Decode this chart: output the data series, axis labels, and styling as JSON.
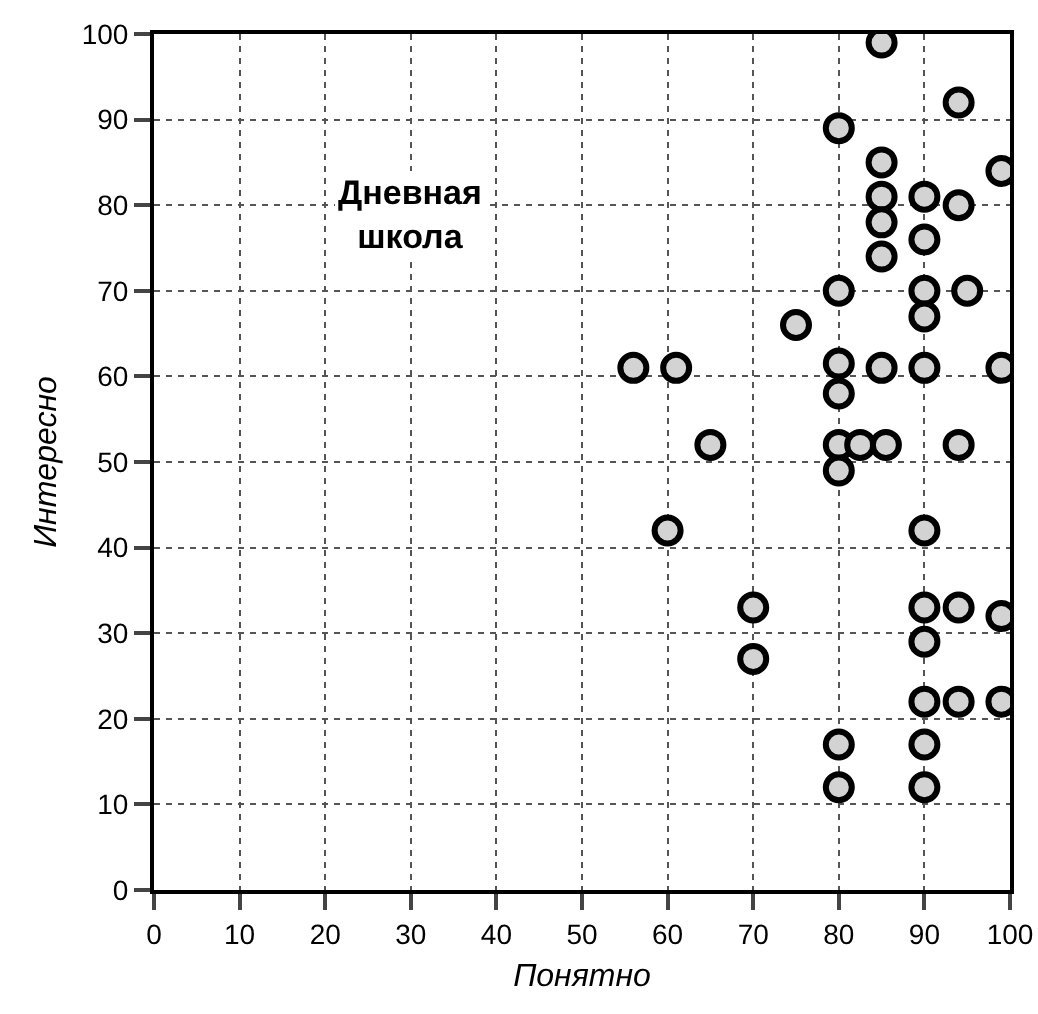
{
  "chart_data": {
    "type": "scatter",
    "xlabel": "Понятно",
    "ylabel": "Интересно",
    "annotations": [
      "Дневная школа"
    ],
    "series": [
      {
        "color": "#d3d3d3",
        "x": [
          85,
          94,
          80,
          85,
          99,
          85,
          90,
          94,
          85,
          90,
          85,
          80,
          90,
          95,
          90,
          75,
          56,
          61,
          80,
          85,
          90,
          99,
          80,
          65,
          80,
          82.5,
          85.5,
          94,
          80,
          60,
          90,
          70,
          70,
          90,
          94,
          99,
          90,
          90,
          94,
          99,
          80,
          90,
          80,
          90
        ],
        "values": [
          99,
          92,
          89,
          85,
          84,
          81,
          81,
          80,
          78,
          76,
          74,
          70,
          70,
          70,
          67,
          66,
          61,
          61,
          61.5,
          61,
          61,
          61,
          58,
          52,
          52,
          52,
          52,
          52,
          49,
          42,
          42,
          33,
          27,
          33,
          33,
          32,
          29,
          22,
          22,
          22,
          17,
          17,
          12,
          12
        ]
      }
    ],
    "xlim": [
      0,
      100
    ],
    "xticks": [
      0,
      10,
      20,
      30,
      40,
      50,
      60,
      70,
      80,
      90,
      100
    ],
    "ylim": [
      0,
      100
    ],
    "yticks": [
      0,
      10,
      20,
      30,
      40,
      50,
      60,
      70,
      80,
      90,
      100
    ],
    "grid": true,
    "marker": "circle"
  }
}
